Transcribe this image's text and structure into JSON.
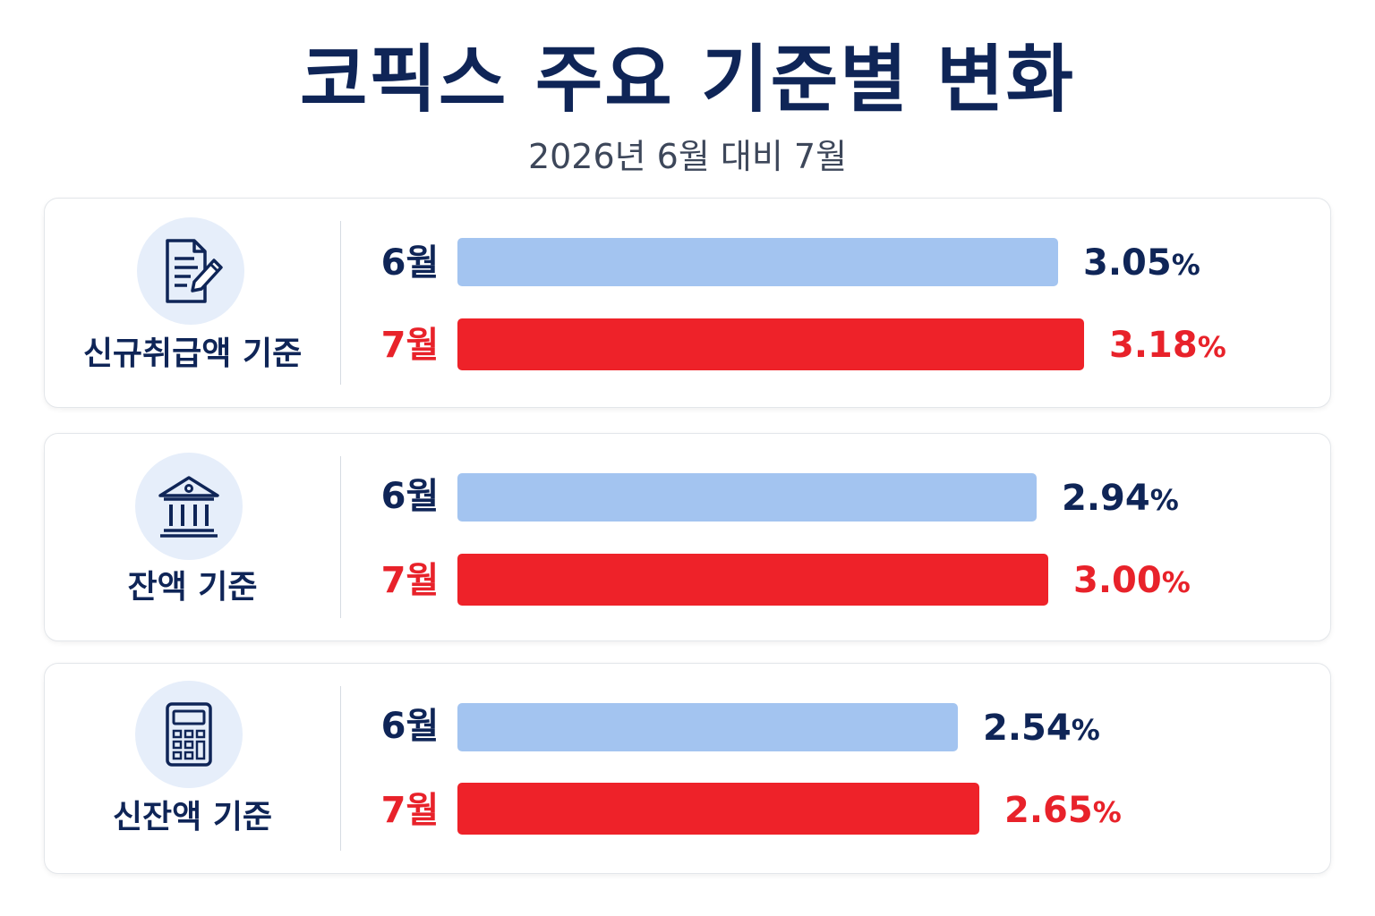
{
  "header": {
    "title": "코픽스 주요 기준별 변화",
    "subtitle": "2026년 6월 대비 7월"
  },
  "colors": {
    "title": "#0f2557",
    "june_bar": "#a3c4f0",
    "july_bar": "#ee2229",
    "june_text": "#0f2557",
    "july_text": "#e8222a",
    "icon_bg": "#e6eefa"
  },
  "chart_data": {
    "type": "bar",
    "orientation": "horizontal",
    "title": "코픽스 주요 기준별 변화",
    "subtitle": "2026년 6월 대비 7월",
    "unit": "%",
    "groups": [
      {
        "label": "신규취급액 기준",
        "icon": "document-pen-icon",
        "june": 3.05,
        "july": 3.18,
        "june_label": "6월",
        "july_label": "7월",
        "june_text": "3.05",
        "july_text": "3.18"
      },
      {
        "label": "잔액 기준",
        "icon": "bank-icon",
        "june": 2.94,
        "july": 3.0,
        "june_label": "6월",
        "july_label": "7월",
        "june_text": "2.94",
        "july_text": "3.00"
      },
      {
        "label": "신잔액 기준",
        "icon": "calculator-icon",
        "june": 2.54,
        "july": 2.65,
        "june_label": "6월",
        "july_label": "7월",
        "june_text": "2.54",
        "july_text": "2.65"
      }
    ]
  }
}
